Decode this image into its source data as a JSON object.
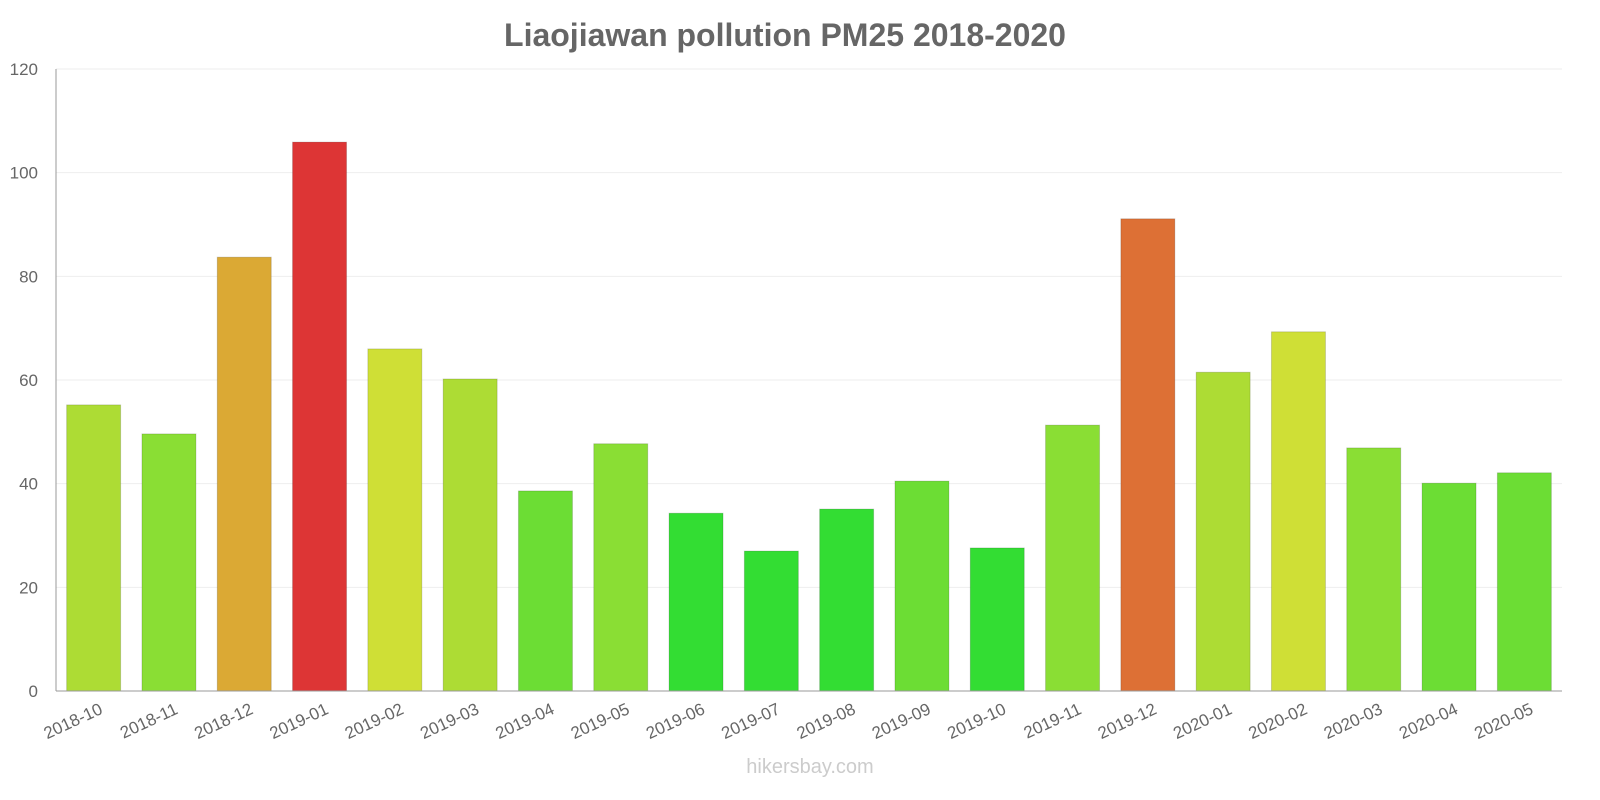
{
  "chart_data": {
    "type": "bar",
    "title": "Liaojiawan pollution PM25 2018-2020",
    "xlabel": "",
    "ylabel": "",
    "ylim": [
      0,
      120
    ],
    "yticks": [
      0,
      20,
      40,
      60,
      80,
      100,
      120
    ],
    "grid": true,
    "categories": [
      "2018-10",
      "2018-11",
      "2018-12",
      "2019-01",
      "2019-02",
      "2019-03",
      "2019-04",
      "2019-05",
      "2019-06",
      "2019-07",
      "2019-08",
      "2019-09",
      "2019-10",
      "2019-11",
      "2019-12",
      "2020-01",
      "2020-02",
      "2020-03",
      "2020-04",
      "2020-05"
    ],
    "values": [
      55.2,
      49.6,
      83.7,
      105.9,
      66.0,
      60.2,
      38.6,
      47.7,
      34.3,
      27.0,
      35.1,
      40.5,
      27.6,
      51.3,
      91.1,
      61.5,
      69.3,
      46.9,
      40.1,
      42.1
    ],
    "colors": [
      "#addc34",
      "#8ade34",
      "#dba934",
      "#dd3535",
      "#cfdf36",
      "#addc34",
      "#6cdd34",
      "#8ade34",
      "#33dd33",
      "#33dd33",
      "#33dd33",
      "#6cdd34",
      "#33dd33",
      "#8ade34",
      "#dd7035",
      "#addc34",
      "#cfdf36",
      "#8ade34",
      "#6cdd34",
      "#6cdd34"
    ]
  },
  "watermark": "hikersbay.com"
}
